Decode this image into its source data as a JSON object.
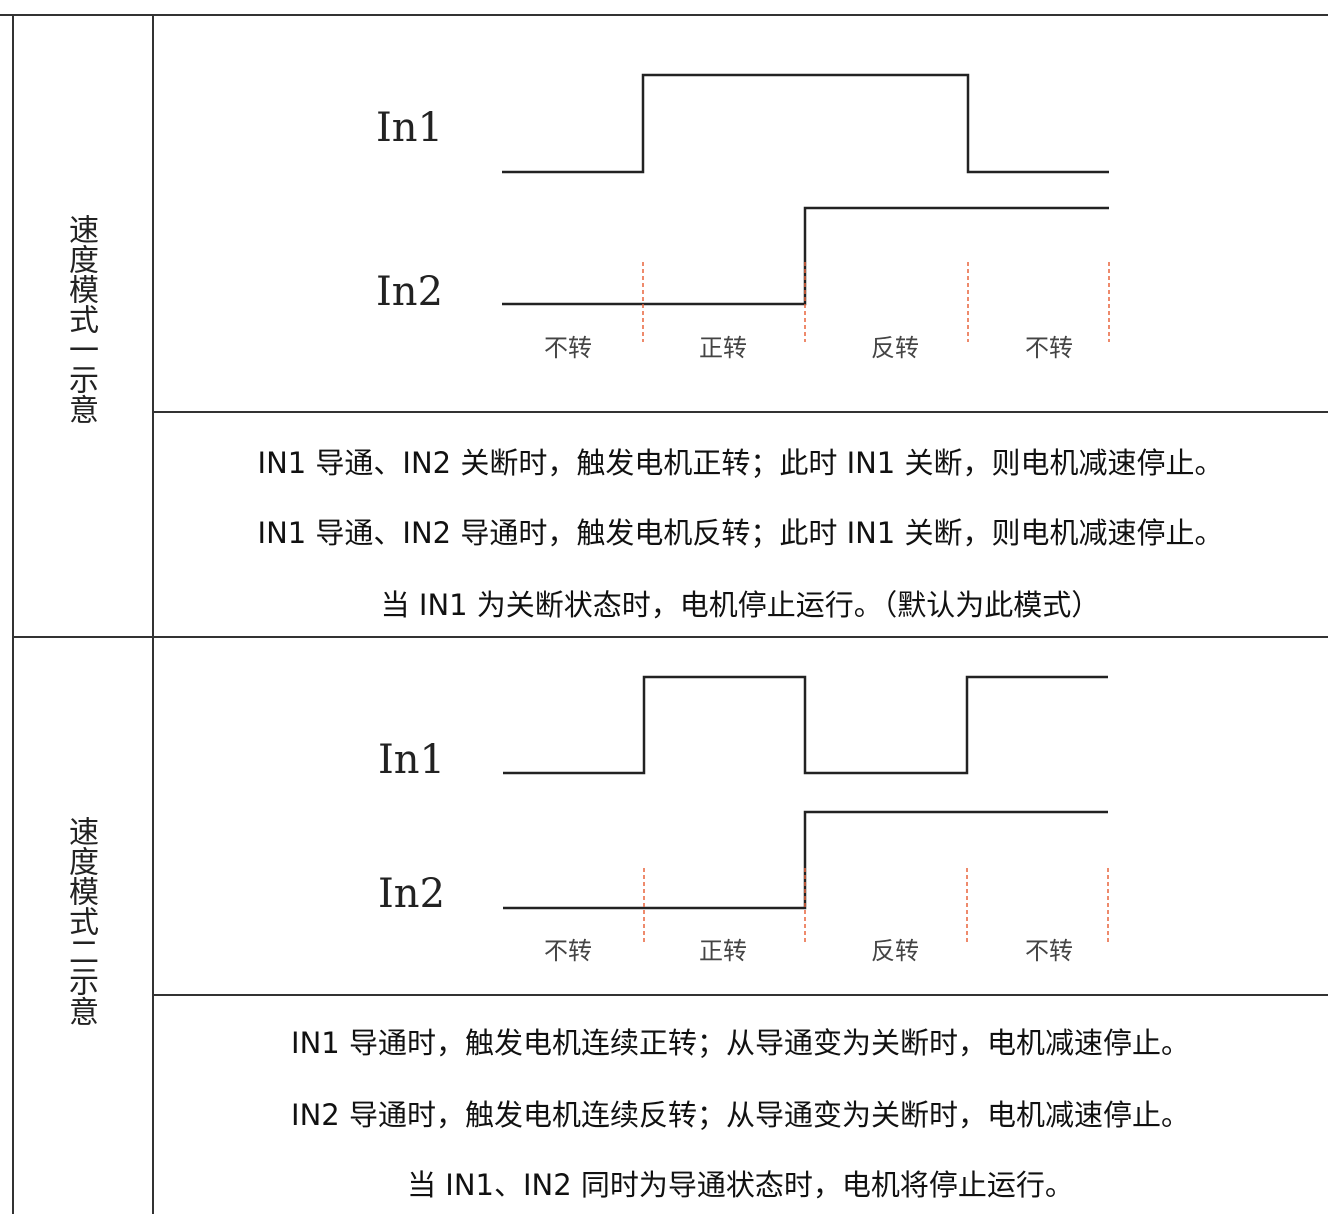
{
  "sections": [
    {
      "side_label": "速度模式一示意",
      "signals": [
        "In1",
        "In2"
      ],
      "states": [
        "不转",
        "正转",
        "反转",
        "不转"
      ],
      "description": [
        "IN1 导通、IN2 关断时，触发电机正转；此时 IN1 关断，则电机减速停止。",
        "IN1 导通、IN2 导通时，触发电机反转；此时 IN1 关断，则电机减速停止。",
        "当 IN1 为关断状态时，电机停止运行。（默认为此模式）"
      ]
    },
    {
      "side_label": "速度模式二示意",
      "signals": [
        "In1",
        "In2"
      ],
      "states": [
        "不转",
        "正转",
        "反转",
        "不转"
      ],
      "description": [
        "IN1 导通时，触发电机连续正转；从导通变为关断时，电机减速停止。",
        "IN2 导通时，触发电机连续反转；从导通变为关断时，电机减速停止。",
        "当 IN1、IN2 同时为导通状态时，电机将停止运行。"
      ]
    }
  ],
  "colors": {
    "line": "#222222",
    "divider": "#e8643c"
  }
}
